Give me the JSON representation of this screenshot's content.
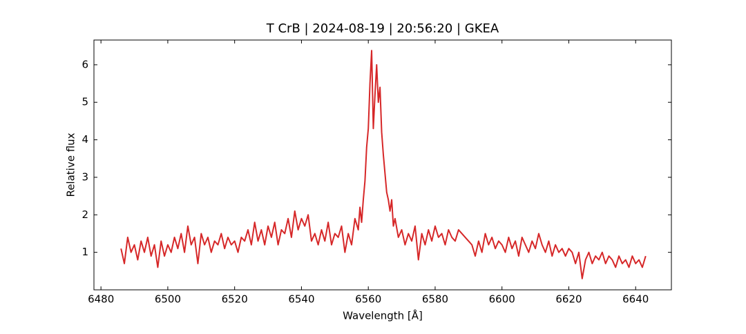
{
  "chart_data": {
    "type": "line",
    "title": "T CrB | 2024-08-19 | 20:56:20 | GKEA",
    "x_label": "Wavelength [Å]",
    "y_label": "Relative flux",
    "color": "#d62728",
    "x": [
      6486,
      6487,
      6488,
      6489,
      6490,
      6491,
      6492,
      6493,
      6494,
      6495,
      6496,
      6497,
      6498,
      6499,
      6500,
      6501,
      6502,
      6503,
      6504,
      6505,
      6506,
      6507,
      6508,
      6509,
      6510,
      6511,
      6512,
      6513,
      6514,
      6515,
      6516,
      6517,
      6518,
      6519,
      6520,
      6521,
      6522,
      6523,
      6524,
      6525,
      6526,
      6527,
      6528,
      6529,
      6530,
      6531,
      6532,
      6533,
      6534,
      6535,
      6536,
      6537,
      6538,
      6539,
      6540,
      6541,
      6542,
      6543,
      6544,
      6545,
      6546,
      6547,
      6548,
      6549,
      6550,
      6551,
      6552,
      6553,
      6554,
      6555,
      6556,
      6557,
      6557.5,
      6558,
      6558.5,
      6559,
      6559.5,
      6560,
      6560.5,
      6561,
      6561.5,
      6562,
      6562.5,
      6563,
      6563.5,
      6564,
      6564.5,
      6565,
      6565.5,
      6566,
      6566.5,
      6567,
      6567.5,
      6568,
      6569,
      6570,
      6571,
      6572,
      6573,
      6574,
      6575,
      6576,
      6577,
      6578,
      6579,
      6580,
      6581,
      6582,
      6583,
      6584,
      6585,
      6586,
      6587,
      6588,
      6589,
      6590,
      6591,
      6592,
      6593,
      6594,
      6595,
      6596,
      6597,
      6598,
      6599,
      6600,
      6601,
      6602,
      6603,
      6604,
      6605,
      6606,
      6607,
      6608,
      6609,
      6610,
      6611,
      6612,
      6613,
      6614,
      6615,
      6616,
      6617,
      6618,
      6619,
      6620,
      6621,
      6622,
      6623,
      6624,
      6625,
      6626,
      6627,
      6628,
      6629,
      6630,
      6631,
      6632,
      6633,
      6634,
      6635,
      6636,
      6637,
      6638,
      6639,
      6640,
      6641,
      6642,
      6643
    ],
    "values": [
      1.1,
      0.7,
      1.4,
      1.0,
      1.2,
      0.8,
      1.3,
      1.0,
      1.4,
      0.9,
      1.2,
      0.6,
      1.3,
      0.9,
      1.2,
      1.0,
      1.4,
      1.1,
      1.5,
      1.0,
      1.7,
      1.2,
      1.4,
      0.7,
      1.5,
      1.2,
      1.4,
      1.0,
      1.3,
      1.2,
      1.5,
      1.1,
      1.4,
      1.2,
      1.3,
      1.0,
      1.4,
      1.3,
      1.6,
      1.2,
      1.8,
      1.3,
      1.6,
      1.2,
      1.7,
      1.4,
      1.8,
      1.2,
      1.6,
      1.5,
      1.9,
      1.4,
      2.1,
      1.6,
      1.9,
      1.7,
      2.0,
      1.3,
      1.5,
      1.2,
      1.6,
      1.3,
      1.8,
      1.2,
      1.5,
      1.4,
      1.7,
      1.0,
      1.5,
      1.2,
      1.9,
      1.6,
      2.2,
      1.8,
      2.4,
      2.9,
      3.8,
      4.3,
      5.5,
      6.38,
      4.3,
      5.2,
      6.0,
      5.0,
      5.4,
      4.2,
      3.6,
      3.1,
      2.6,
      2.4,
      2.1,
      2.4,
      1.7,
      1.9,
      1.4,
      1.6,
      1.2,
      1.5,
      1.3,
      1.7,
      0.8,
      1.5,
      1.2,
      1.6,
      1.3,
      1.7,
      1.4,
      1.5,
      1.2,
      1.6,
      1.4,
      1.3,
      1.6,
      1.5,
      1.4,
      1.3,
      1.2,
      0.9,
      1.3,
      1.0,
      1.5,
      1.2,
      1.4,
      1.1,
      1.3,
      1.2,
      1.0,
      1.4,
      1.1,
      1.3,
      0.9,
      1.4,
      1.2,
      1.0,
      1.3,
      1.1,
      1.5,
      1.2,
      1.0,
      1.3,
      0.9,
      1.2,
      1.0,
      1.1,
      0.9,
      1.1,
      1.0,
      0.7,
      1.0,
      0.3,
      0.8,
      1.0,
      0.7,
      0.9,
      0.8,
      1.0,
      0.7,
      0.9,
      0.8,
      0.6,
      0.9,
      0.7,
      0.8,
      0.6,
      0.9,
      0.7,
      0.8,
      0.6,
      0.9
    ],
    "xlim": [
      6477.9,
      6650.7
    ],
    "ylim": [
      0.0,
      6.66
    ],
    "xticks": [
      6480,
      6500,
      6520,
      6540,
      6560,
      6580,
      6600,
      6620,
      6640
    ],
    "yticks": [
      1,
      2,
      3,
      4,
      5,
      6
    ]
  }
}
